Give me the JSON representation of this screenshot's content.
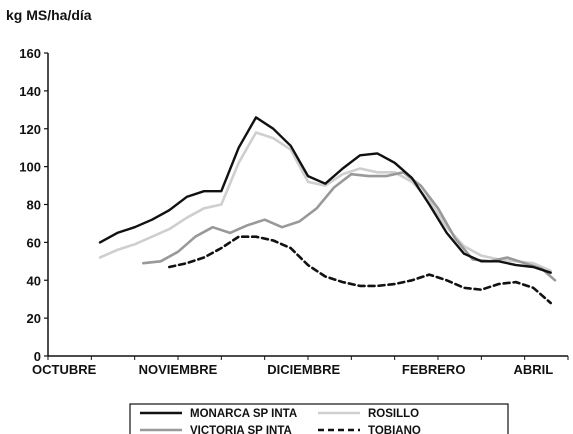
{
  "chart_data": {
    "type": "line",
    "ylabel": "kg MS/ha/día",
    "ylim": [
      0,
      160
    ],
    "yticks": [
      0,
      20,
      40,
      60,
      80,
      100,
      120,
      140,
      160
    ],
    "xlim": [
      0,
      12
    ],
    "xticks": [
      {
        "x": 0,
        "label": "OCTUBRE"
      },
      {
        "x": 3,
        "label": "NOVIEMBRE"
      },
      {
        "x": 5.9,
        "label": "DICIEMBRE"
      },
      {
        "x": 8.9,
        "label": "FEBRERO"
      },
      {
        "x": 11.2,
        "label": "ABRIL"
      }
    ],
    "legend_position": "bottom",
    "series": [
      {
        "name": "MONARCA SP INTA",
        "color": "#111111",
        "dash": "solid",
        "points": [
          [
            1.2,
            60
          ],
          [
            1.6,
            65
          ],
          [
            2.0,
            68
          ],
          [
            2.4,
            72
          ],
          [
            2.8,
            77
          ],
          [
            3.2,
            84
          ],
          [
            3.6,
            87
          ],
          [
            4.0,
            87
          ],
          [
            4.4,
            110
          ],
          [
            4.8,
            126
          ],
          [
            5.2,
            120
          ],
          [
            5.6,
            111
          ],
          [
            6.0,
            95
          ],
          [
            6.4,
            91
          ],
          [
            6.8,
            99
          ],
          [
            7.2,
            106
          ],
          [
            7.6,
            107
          ],
          [
            8.0,
            102
          ],
          [
            8.4,
            94
          ],
          [
            8.8,
            80
          ],
          [
            9.2,
            65
          ],
          [
            9.6,
            54
          ],
          [
            10.0,
            50
          ],
          [
            10.4,
            50
          ],
          [
            10.8,
            48
          ],
          [
            11.2,
            47
          ],
          [
            11.6,
            44
          ]
        ]
      },
      {
        "name": "VICTORIA SP INTA",
        "color": "#999999",
        "dash": "solid",
        "points": [
          [
            2.2,
            49
          ],
          [
            2.6,
            50
          ],
          [
            3.0,
            55
          ],
          [
            3.4,
            63
          ],
          [
            3.8,
            68
          ],
          [
            4.2,
            65
          ],
          [
            4.6,
            69
          ],
          [
            5.0,
            72
          ],
          [
            5.4,
            68
          ],
          [
            5.8,
            71
          ],
          [
            6.2,
            78
          ],
          [
            6.6,
            89
          ],
          [
            7.0,
            96
          ],
          [
            7.4,
            95
          ],
          [
            7.8,
            95
          ],
          [
            8.2,
            97
          ],
          [
            8.6,
            90
          ],
          [
            9.0,
            78
          ],
          [
            9.4,
            62
          ],
          [
            9.8,
            51
          ],
          [
            10.2,
            50
          ],
          [
            10.6,
            52
          ],
          [
            11.0,
            49
          ],
          [
            11.4,
            46
          ],
          [
            11.7,
            40
          ]
        ]
      },
      {
        "name": "ROSILLO",
        "color": "#cfcfcf",
        "dash": "solid",
        "points": [
          [
            1.2,
            52
          ],
          [
            1.6,
            56
          ],
          [
            2.0,
            59
          ],
          [
            2.4,
            63
          ],
          [
            2.8,
            67
          ],
          [
            3.2,
            73
          ],
          [
            3.6,
            78
          ],
          [
            4.0,
            80
          ],
          [
            4.4,
            102
          ],
          [
            4.8,
            118
          ],
          [
            5.2,
            115
          ],
          [
            5.6,
            109
          ],
          [
            6.0,
            92
          ],
          [
            6.4,
            90
          ],
          [
            6.8,
            96
          ],
          [
            7.2,
            99
          ],
          [
            7.6,
            97
          ],
          [
            8.0,
            97
          ],
          [
            8.4,
            92
          ],
          [
            8.8,
            82
          ],
          [
            9.2,
            68
          ],
          [
            9.6,
            58
          ],
          [
            10.0,
            53
          ],
          [
            10.4,
            51
          ],
          [
            10.8,
            50
          ],
          [
            11.2,
            49
          ],
          [
            11.6,
            45
          ]
        ]
      },
      {
        "name": "TOBIANO",
        "color": "#111111",
        "dash": "dashed",
        "points": [
          [
            2.8,
            47
          ],
          [
            3.2,
            49
          ],
          [
            3.6,
            52
          ],
          [
            4.0,
            57
          ],
          [
            4.4,
            63
          ],
          [
            4.8,
            63
          ],
          [
            5.2,
            61
          ],
          [
            5.6,
            57
          ],
          [
            6.0,
            48
          ],
          [
            6.4,
            42
          ],
          [
            6.8,
            39
          ],
          [
            7.2,
            37
          ],
          [
            7.6,
            37
          ],
          [
            8.0,
            38
          ],
          [
            8.4,
            40
          ],
          [
            8.8,
            43
          ],
          [
            9.2,
            40
          ],
          [
            9.6,
            36
          ],
          [
            10.0,
            35
          ],
          [
            10.4,
            38
          ],
          [
            10.8,
            39
          ],
          [
            11.2,
            36
          ],
          [
            11.6,
            28
          ]
        ]
      }
    ]
  }
}
